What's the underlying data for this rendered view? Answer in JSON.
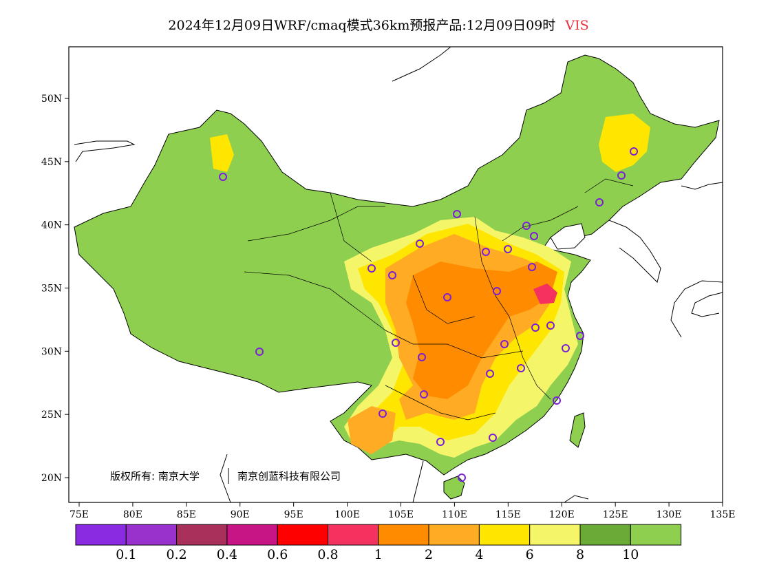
{
  "title": {
    "main": "2024年12月09日WRF/cmaq模式36km预报产品:12月09日09时",
    "variable": "VIS",
    "variable_color": "#e8303a"
  },
  "map": {
    "lon_range": [
      73,
      135
    ],
    "lat_range": [
      18,
      54
    ],
    "x_ticks": [
      "75E",
      "80E",
      "85E",
      "90E",
      "95E",
      "100E",
      "105E",
      "110E",
      "115E",
      "120E",
      "125E",
      "130E",
      "135E"
    ],
    "y_ticks": [
      "20N",
      "25N",
      "30N",
      "35N",
      "40N",
      "45N",
      "50N"
    ],
    "copyright_left": "版权所有: 南京大学",
    "copyright_right": "南京创蓝科技有限公司"
  },
  "legend": {
    "colors": [
      "#8a2be2",
      "#9932cc",
      "#a8305a",
      "#c71585",
      "#ff0000",
      "#f5325f",
      "#ff8c00",
      "#ffab24",
      "#ffe600",
      "#f5f56a",
      "#6aab38",
      "#8fcf4f"
    ],
    "labels": [
      "0.1",
      "0.2",
      "0.4",
      "0.6",
      "0.8",
      "1",
      "2",
      "4",
      "6",
      "8",
      "10"
    ]
  },
  "stations_color": "#7a1fd6"
}
